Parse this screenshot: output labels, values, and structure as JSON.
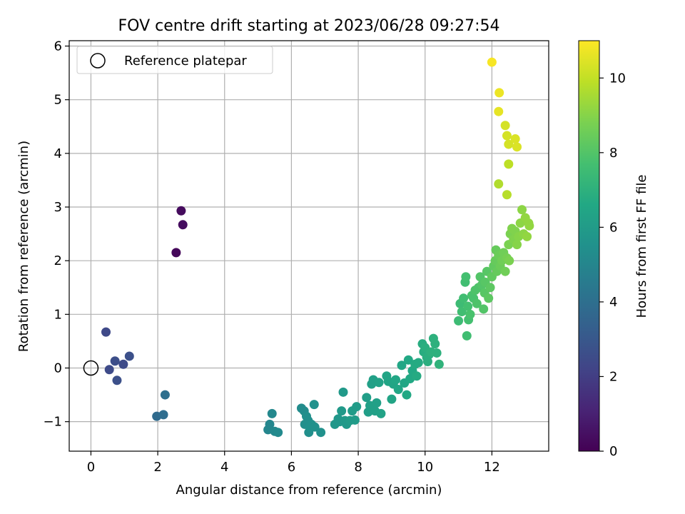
{
  "chart_data": {
    "type": "scatter",
    "title": "FOV centre drift starting at 2023/06/28 09:27:54",
    "xlabel": "Angular distance from reference (arcmin)",
    "ylabel": "Rotation from reference (arcmin)",
    "xlim": [
      -0.65,
      13.7
    ],
    "ylim": [
      -1.55,
      6.1
    ],
    "xticks": [
      0,
      2,
      4,
      6,
      8,
      10,
      12
    ],
    "yticks": [
      -1,
      0,
      1,
      2,
      3,
      4,
      5,
      6
    ],
    "grid": true,
    "legend": {
      "position": "upper-left",
      "entries": [
        "Reference platepar"
      ]
    },
    "reference_point": {
      "x": 0,
      "y": 0,
      "label": "Reference platepar"
    },
    "colorbar": {
      "label": "Hours from first FF file",
      "colormap": "viridis",
      "range": [
        0,
        11
      ],
      "ticks": [
        0,
        2,
        4,
        6,
        8,
        10
      ]
    },
    "points": [
      [
        2.55,
        2.15,
        0.2
      ],
      [
        2.7,
        2.93,
        0.3
      ],
      [
        2.75,
        2.67,
        0.35
      ],
      [
        0.45,
        0.67,
        2.4
      ],
      [
        0.55,
        -0.03,
        2.5
      ],
      [
        0.72,
        0.13,
        2.6
      ],
      [
        0.78,
        -0.23,
        2.7
      ],
      [
        0.97,
        0.07,
        2.5
      ],
      [
        1.15,
        0.22,
        2.7
      ],
      [
        1.97,
        -0.9,
        3.8
      ],
      [
        2.17,
        -0.87,
        3.9
      ],
      [
        2.22,
        -0.5,
        4.0
      ],
      [
        5.3,
        -1.15,
        5.0
      ],
      [
        5.35,
        -1.05,
        5.0
      ],
      [
        5.42,
        -0.85,
        5.1
      ],
      [
        5.5,
        -1.18,
        5.1
      ],
      [
        5.6,
        -1.2,
        5.2
      ],
      [
        6.3,
        -0.75,
        5.3
      ],
      [
        6.38,
        -0.8,
        5.3
      ],
      [
        6.4,
        -1.05,
        5.4
      ],
      [
        6.45,
        -0.9,
        5.4
      ],
      [
        6.5,
        -0.98,
        5.4
      ],
      [
        6.52,
        -1.2,
        5.4
      ],
      [
        6.55,
        -1.1,
        5.5
      ],
      [
        6.6,
        -1.05,
        5.5
      ],
      [
        6.68,
        -0.68,
        5.5
      ],
      [
        6.7,
        -1.1,
        5.5
      ],
      [
        6.88,
        -1.2,
        5.5
      ],
      [
        7.3,
        -1.05,
        5.8
      ],
      [
        7.4,
        -0.95,
        5.8
      ],
      [
        7.45,
        -1.0,
        5.8
      ],
      [
        7.5,
        -0.8,
        5.9
      ],
      [
        7.55,
        -0.45,
        5.9
      ],
      [
        7.6,
        -0.98,
        5.9
      ],
      [
        7.65,
        -1.05,
        5.9
      ],
      [
        7.75,
        -0.98,
        6.0
      ],
      [
        7.82,
        -0.8,
        6.0
      ],
      [
        7.9,
        -0.97,
        6.0
      ],
      [
        7.95,
        -0.72,
        6.0
      ],
      [
        8.25,
        -0.55,
        6.1
      ],
      [
        8.3,
        -0.82,
        6.1
      ],
      [
        8.35,
        -0.7,
        6.2
      ],
      [
        8.4,
        -0.3,
        6.2
      ],
      [
        8.45,
        -0.22,
        6.2
      ],
      [
        8.5,
        -0.8,
        6.2
      ],
      [
        8.55,
        -0.65,
        6.2
      ],
      [
        8.62,
        -0.27,
        6.3
      ],
      [
        8.68,
        -0.85,
        6.3
      ],
      [
        8.85,
        -0.15,
        6.4
      ],
      [
        8.9,
        -0.25,
        6.4
      ],
      [
        9.0,
        -0.58,
        6.4
      ],
      [
        9.05,
        -0.3,
        6.4
      ],
      [
        9.12,
        -0.22,
        6.5
      ],
      [
        9.2,
        -0.4,
        6.5
      ],
      [
        9.3,
        0.05,
        6.5
      ],
      [
        9.38,
        -0.28,
        6.5
      ],
      [
        9.45,
        -0.5,
        6.6
      ],
      [
        9.5,
        0.15,
        6.6
      ],
      [
        9.55,
        -0.2,
        6.6
      ],
      [
        9.62,
        -0.05,
        6.6
      ],
      [
        9.7,
        0.07,
        6.7
      ],
      [
        9.75,
        -0.15,
        6.7
      ],
      [
        9.8,
        0.1,
        6.7
      ],
      [
        9.92,
        0.45,
        6.8
      ],
      [
        9.96,
        0.3,
        6.8
      ],
      [
        10.0,
        0.38,
        6.9
      ],
      [
        10.05,
        0.2,
        6.9
      ],
      [
        10.08,
        0.12,
        6.9
      ],
      [
        10.12,
        0.25,
        6.9
      ],
      [
        10.18,
        0.3,
        7.0
      ],
      [
        10.25,
        0.55,
        7.0
      ],
      [
        10.3,
        0.45,
        7.0
      ],
      [
        10.35,
        0.28,
        7.0
      ],
      [
        10.42,
        0.07,
        7.1
      ],
      [
        11.0,
        0.88,
        7.5
      ],
      [
        11.05,
        1.2,
        7.5
      ],
      [
        11.1,
        1.05,
        7.6
      ],
      [
        11.15,
        1.3,
        7.6
      ],
      [
        11.2,
        1.6,
        7.6
      ],
      [
        11.22,
        1.7,
        7.7
      ],
      [
        11.25,
        0.6,
        7.6
      ],
      [
        11.28,
        1.15,
        7.7
      ],
      [
        11.3,
        0.9,
        7.7
      ],
      [
        11.35,
        1.0,
        7.8
      ],
      [
        11.4,
        1.35,
        7.8
      ],
      [
        11.45,
        1.3,
        7.8
      ],
      [
        11.5,
        1.45,
        7.9
      ],
      [
        11.55,
        1.2,
        7.9
      ],
      [
        11.6,
        1.5,
        7.9
      ],
      [
        11.65,
        1.7,
        8.0
      ],
      [
        11.7,
        1.55,
        8.0
      ],
      [
        11.75,
        1.1,
        8.0
      ],
      [
        11.78,
        1.4,
        8.1
      ],
      [
        11.8,
        1.6,
        8.1
      ],
      [
        11.85,
        1.8,
        8.1
      ],
      [
        11.9,
        1.3,
        8.2
      ],
      [
        11.95,
        1.5,
        8.2
      ],
      [
        12.0,
        1.7,
        8.3
      ],
      [
        12.05,
        1.9,
        8.3
      ],
      [
        12.1,
        2.0,
        8.4
      ],
      [
        12.12,
        2.2,
        8.4
      ],
      [
        12.15,
        1.8,
        8.4
      ],
      [
        12.2,
        2.1,
        8.5
      ],
      [
        12.25,
        1.9,
        8.5
      ],
      [
        12.3,
        2.0,
        8.6
      ],
      [
        12.35,
        2.15,
        8.6
      ],
      [
        12.4,
        1.8,
        8.6
      ],
      [
        12.45,
        2.05,
        8.7
      ],
      [
        12.5,
        2.3,
        8.8
      ],
      [
        12.52,
        2.0,
        8.8
      ],
      [
        12.55,
        2.5,
        8.8
      ],
      [
        12.6,
        2.6,
        8.9
      ],
      [
        12.65,
        2.4,
        8.9
      ],
      [
        12.7,
        2.55,
        8.9
      ],
      [
        12.75,
        2.3,
        9.0
      ],
      [
        12.8,
        2.45,
        9.0
      ],
      [
        12.85,
        2.7,
        9.1
      ],
      [
        12.9,
        2.95,
        9.1
      ],
      [
        12.95,
        2.5,
        9.1
      ],
      [
        13.0,
        2.8,
        9.2
      ],
      [
        13.05,
        2.45,
        9.2
      ],
      [
        13.1,
        2.7,
        9.2
      ],
      [
        13.12,
        2.65,
        9.2
      ],
      [
        12.2,
        3.43,
        9.7
      ],
      [
        12.45,
        3.23,
        9.8
      ],
      [
        12.5,
        3.8,
        9.9
      ],
      [
        12.4,
        4.52,
        10.3
      ],
      [
        12.45,
        4.33,
        10.3
      ],
      [
        12.5,
        4.17,
        10.3
      ],
      [
        12.7,
        4.27,
        10.4
      ],
      [
        12.75,
        4.12,
        10.4
      ],
      [
        12.2,
        4.78,
        10.6
      ],
      [
        12.22,
        5.13,
        10.7
      ],
      [
        12.0,
        5.7,
        10.9
      ]
    ]
  }
}
